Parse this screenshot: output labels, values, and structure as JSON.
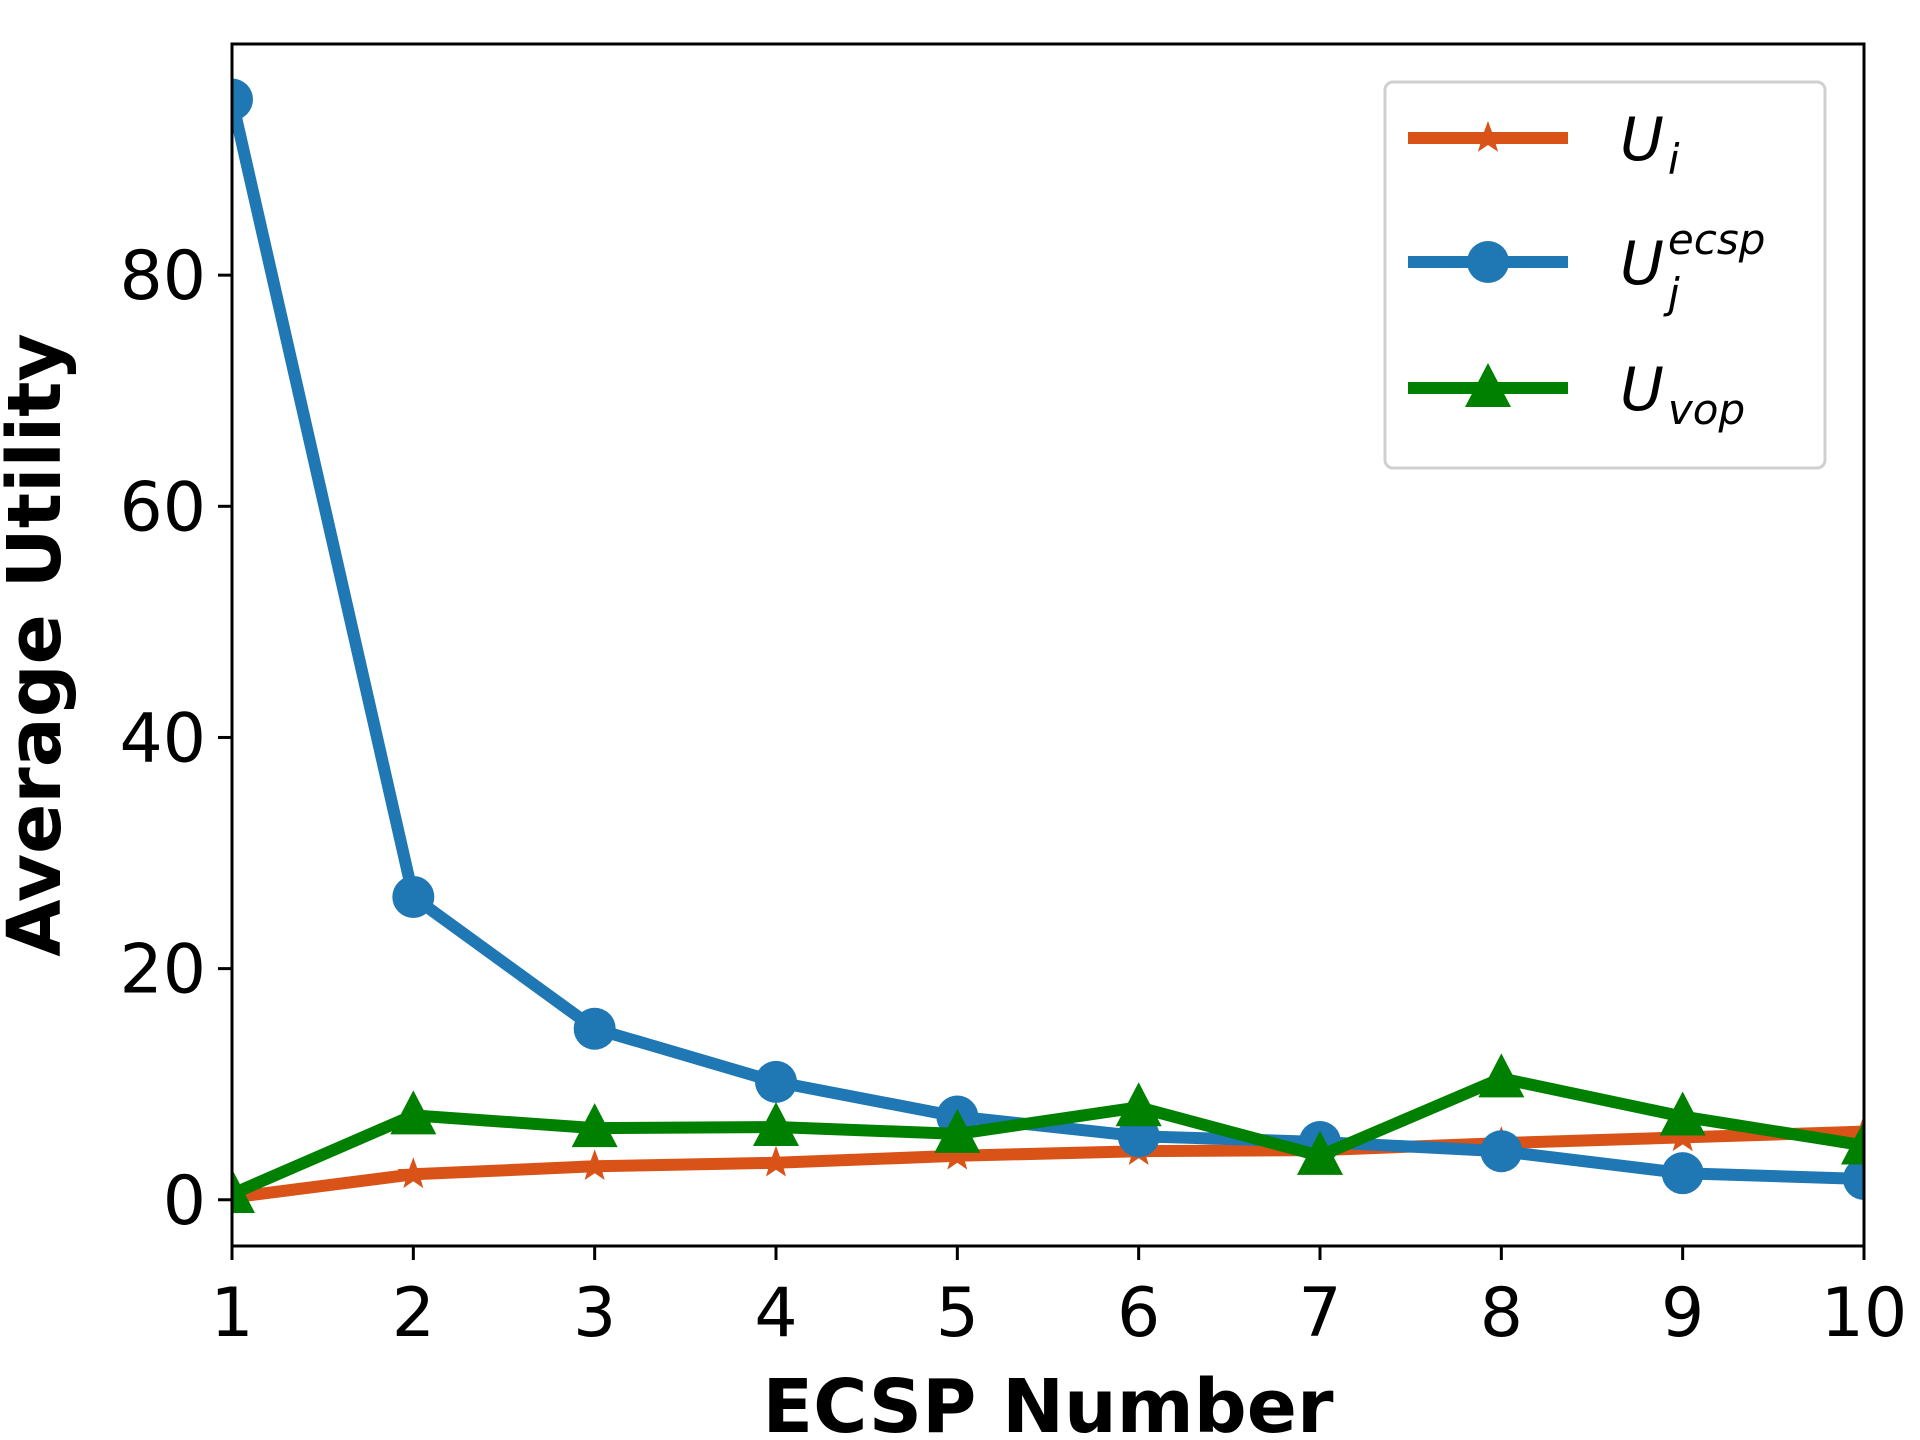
{
  "chart_data": {
    "type": "line",
    "title": "",
    "xlabel": "ECSP Number",
    "ylabel": "Average Utility",
    "x": [
      1,
      2,
      3,
      4,
      5,
      6,
      7,
      8,
      9,
      10
    ],
    "xlim": [
      1,
      10
    ],
    "ylim": [
      -4,
      100
    ],
    "xticks": [
      "1",
      "2",
      "3",
      "4",
      "5",
      "6",
      "7",
      "8",
      "9",
      "10"
    ],
    "yticks": [
      0,
      20,
      40,
      60,
      80
    ],
    "grid": false,
    "legend_position": "top-right",
    "series": [
      {
        "key": "ui",
        "label_main": "U",
        "label_sub": "i",
        "label_sup": "",
        "color": "#D95319",
        "marker": "star",
        "values": [
          0.2,
          2.2,
          2.9,
          3.2,
          3.8,
          4.2,
          4.3,
          4.9,
          5.4,
          5.9
        ]
      },
      {
        "key": "uecsp",
        "label_main": "U",
        "label_sub": "j",
        "label_sup": "ecsp",
        "color": "#1F77B4",
        "marker": "circle",
        "values": [
          95.2,
          26.2,
          14.8,
          10.2,
          7.2,
          5.5,
          5.0,
          4.2,
          2.3,
          1.8
        ]
      },
      {
        "key": "uvop",
        "label_main": "U",
        "label_sub": "vop",
        "label_sup": "",
        "color": "#008000",
        "marker": "triangle",
        "values": [
          0.5,
          7.3,
          6.2,
          6.3,
          5.7,
          8.0,
          3.8,
          10.5,
          7.2,
          4.7
        ]
      }
    ]
  }
}
